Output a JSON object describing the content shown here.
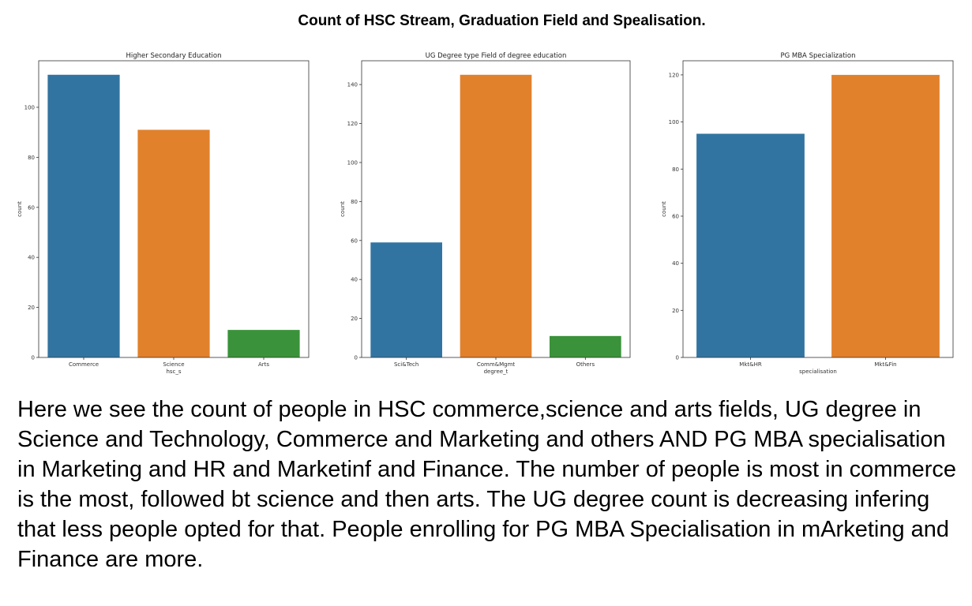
{
  "main_title": "Count of HSC Stream, Graduation Field and Spealisation.",
  "description": "Here we see the count of people in HSC commerce,science and arts fields, UG degree in Science and Technology, Commerce and Marketing and others AND PG MBA specialisation in Marketing and HR and Marketinf and Finance. The number of people is most in commerce is the most, followed bt science and then arts. The UG degree count is decreasing infering that less people opted for that. People enrolling for PG MBA Specialisation in mArketing and Finance are more.",
  "colors": {
    "blue": "#3274a1",
    "orange": "#e1812c",
    "green": "#3a923a"
  },
  "chart_data": [
    {
      "type": "bar",
      "title": "Higher Secondary Education",
      "xlabel": "hsc_s",
      "ylabel": "count",
      "categories": [
        "Commerce",
        "Science",
        "Arts"
      ],
      "values": [
        113,
        91,
        11
      ],
      "ylim": [
        0,
        118.6
      ],
      "yticks": [
        0,
        20,
        40,
        60,
        80,
        100
      ],
      "bar_colors": [
        "#3274a1",
        "#e1812c",
        "#3a923a"
      ]
    },
    {
      "type": "bar",
      "title": "UG Degree type Field of degree education",
      "xlabel": "degree_t",
      "ylabel": "count",
      "categories": [
        "Sci&Tech",
        "Comm&Mgmt",
        "Others"
      ],
      "values": [
        59,
        145,
        11
      ],
      "ylim": [
        0,
        152.2
      ],
      "yticks": [
        0,
        20,
        40,
        60,
        80,
        100,
        120,
        140
      ],
      "bar_colors": [
        "#3274a1",
        "#e1812c",
        "#3a923a"
      ]
    },
    {
      "type": "bar",
      "title": "PG MBA Specialization",
      "xlabel": "specialisation",
      "ylabel": "count",
      "categories": [
        "Mkt&HR",
        "Mkt&Fin"
      ],
      "values": [
        95,
        120
      ],
      "ylim": [
        0,
        126
      ],
      "yticks": [
        0,
        20,
        40,
        60,
        80,
        100,
        120
      ],
      "bar_colors": [
        "#3274a1",
        "#e1812c"
      ]
    }
  ]
}
